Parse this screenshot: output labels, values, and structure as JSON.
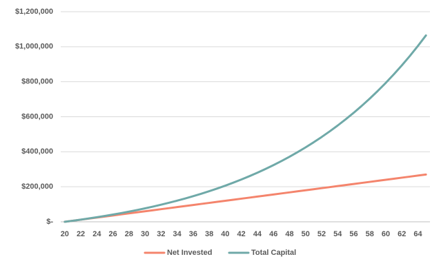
{
  "chart_data": {
    "type": "line",
    "categories": [
      "20",
      null,
      "22",
      null,
      "24",
      null,
      "26",
      null,
      "28",
      null,
      "30",
      null,
      "32",
      null,
      "34",
      null,
      "36",
      null,
      "38",
      null,
      "40",
      null,
      "42",
      null,
      "44",
      null,
      "46",
      null,
      "48",
      null,
      "50",
      null,
      "52",
      null,
      "54",
      null,
      "56",
      null,
      "58",
      null,
      "60",
      null,
      "62",
      null,
      "64",
      null
    ],
    "series": [
      {
        "name": "Net Invested",
        "color": "#f4846c",
        "values": [
          0,
          6000,
          12000,
          18000,
          24000,
          30000,
          36000,
          42000,
          48000,
          54000,
          60000,
          66000,
          72000,
          78000,
          84000,
          90000,
          96000,
          102000,
          108000,
          114000,
          120000,
          126000,
          132000,
          138000,
          144000,
          150000,
          156000,
          162000,
          168000,
          174000,
          180000,
          186000,
          192000,
          198000,
          204000,
          210000,
          216000,
          222000,
          228000,
          234000,
          240000,
          246000,
          252000,
          258000,
          264000,
          270000
        ]
      },
      {
        "name": "Total Capital",
        "color": "#6fa9a8",
        "values": [
          0,
          6000,
          12322,
          18985,
          26004,
          33402,
          41194,
          49407,
          58060,
          67178,
          76786,
          86909,
          97577,
          108818,
          120661,
          133141,
          146290,
          160146,
          174746,
          190130,
          206341,
          223421,
          241419,
          260383,
          280367,
          301422,
          323609,
          346987,
          371620,
          397577,
          424927,
          453746,
          484112,
          516108,
          549823,
          585348,
          622782,
          662226,
          703788,
          747581,
          793727,
          842350,
          893585,
          947571,
          1004455,
          1064395
        ]
      }
    ],
    "ylim": [
      0,
      1200000
    ],
    "yticks": [
      {
        "value": 0,
        "label": "$-"
      },
      {
        "value": 200000,
        "label": "$200,000"
      },
      {
        "value": 400000,
        "label": "$400,000"
      },
      {
        "value": 600000,
        "label": "$600,000"
      },
      {
        "value": 800000,
        "label": "$800,000"
      },
      {
        "value": 1000000,
        "label": "$1,000,000"
      },
      {
        "value": 1200000,
        "label": "$1,200,000"
      }
    ],
    "grid": true,
    "legend": "bottom"
  }
}
